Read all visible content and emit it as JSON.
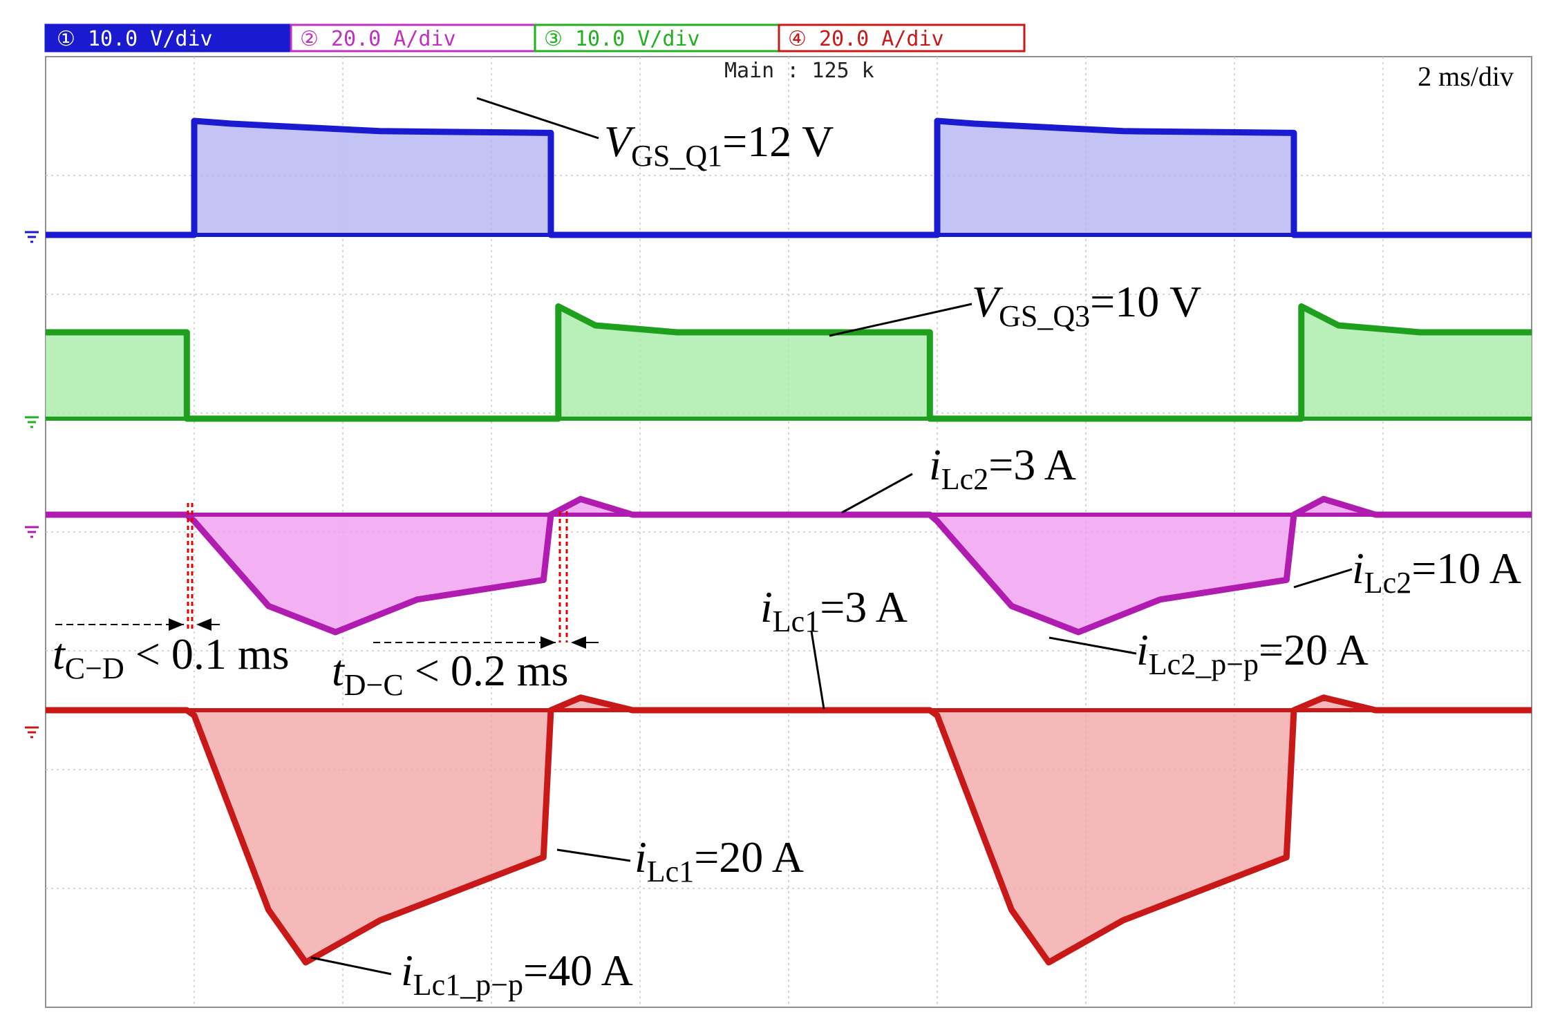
{
  "header": {
    "channels": [
      {
        "label": "10.0 V/div",
        "badge": "① ",
        "color": "#1a1ad0"
      },
      {
        "label": "20.0 A/div",
        "badge": "② ",
        "color": "#c030c0"
      },
      {
        "label": "10.0 V/div",
        "badge": "③ ",
        "color": "#20b020"
      },
      {
        "label": "20.0 A/div",
        "badge": "④ ",
        "color": "#c81818"
      }
    ],
    "main_label": "Main : 125 k",
    "timebase": "2 ms/div"
  },
  "annotations": {
    "vgs_q1": {
      "sym": "V",
      "sub": "GS_Q1",
      "rest": "=12 V"
    },
    "vgs_q3": {
      "sym": "V",
      "sub": "GS_Q3",
      "rest": "=10 V"
    },
    "ilc2_top": {
      "sym": "i",
      "sub": "Lc2",
      "rest": "=3 A"
    },
    "ilc2_right": {
      "sym": "i",
      "sub": "Lc2",
      "rest": "=10 A"
    },
    "ilc2_pp": {
      "sym": "i",
      "sub": "Lc2_p−p",
      "rest": "=20 A"
    },
    "ilc1_top": {
      "sym": "i",
      "sub": "Lc1",
      "rest": "=3 A"
    },
    "ilc1_mid": {
      "sym": "i",
      "sub": "Lc1",
      "rest": "=20 A"
    },
    "ilc1_pp": {
      "sym": "i",
      "sub": "Lc1_p−p",
      "rest": "=40 A"
    },
    "t_cd": {
      "sym": "t",
      "sub": "C−D",
      "rest": " < 0.1 ms"
    },
    "t_dc": {
      "sym": "t",
      "sub": "D−C",
      "rest": " < 0.2 ms"
    }
  },
  "chart_data": {
    "type": "line",
    "title": "",
    "x_units": "ms",
    "time_per_div_ms": 2,
    "divisions": {
      "x": 10,
      "y": 8
    },
    "grid": true,
    "series": [
      {
        "name": "V_GS_Q1",
        "channel": 1,
        "color": "#1a1ad0",
        "fill": "#b4b4f4",
        "units": "V",
        "scale_per_div": 10,
        "x": [
          0,
          2.0,
          2.0,
          2.5,
          4.5,
          6.8,
          6.8,
          12.0,
          12.0,
          12.5,
          14.5,
          16.8,
          16.8,
          20
        ],
        "y": [
          0,
          0,
          12.3,
          12.0,
          11.2,
          11.0,
          0,
          0,
          12.3,
          12.0,
          11.2,
          11.0,
          0,
          0
        ]
      },
      {
        "name": "V_GS_Q3",
        "channel": 3,
        "color": "#1ea01e",
        "fill": "#a8eca8",
        "units": "V",
        "scale_per_div": 10,
        "x": [
          0,
          1.9,
          1.9,
          6.9,
          6.9,
          7.4,
          8.5,
          11.9,
          11.9,
          16.9,
          16.9,
          17.4,
          18.5,
          20
        ],
        "y": [
          10,
          10,
          0,
          0,
          13,
          10.8,
          10,
          10,
          0,
          0,
          13,
          10.8,
          10,
          10
        ]
      },
      {
        "name": "i_Lc2",
        "channel": 2,
        "color": "#b01cb0",
        "fill": "#f09cf0",
        "units": "A",
        "scale_per_div": 20,
        "x": [
          0,
          1.9,
          2.0,
          3.0,
          3.9,
          5.0,
          6.7,
          6.8,
          7.2,
          7.9,
          9.0,
          11.9,
          12.0,
          13.0,
          13.9,
          15.0,
          16.7,
          16.8,
          17.2,
          17.9,
          19.0,
          20
        ],
        "y": [
          0,
          0,
          -1,
          -14,
          -18,
          -13,
          -10,
          0,
          2.4,
          0,
          0,
          0,
          -1,
          -14,
          -18,
          -13,
          -10,
          0,
          2.4,
          0,
          0,
          0
        ]
      },
      {
        "name": "i_Lc1",
        "channel": 4,
        "color": "#c81818",
        "fill": "#f4a8a8",
        "units": "A",
        "scale_per_div": 20,
        "x": [
          0,
          1.9,
          2.0,
          3.0,
          3.5,
          4.5,
          6.7,
          6.8,
          7.2,
          7.9,
          9.0,
          11.9,
          12.0,
          13.0,
          13.5,
          14.5,
          16.7,
          16.8,
          17.2,
          17.9,
          19.0,
          20
        ],
        "y": [
          0,
          0,
          -1,
          -38,
          -48,
          -40,
          -28,
          0,
          2.4,
          0,
          0,
          0,
          -1,
          -38,
          -48,
          -40,
          -28,
          0,
          2.4,
          0,
          0,
          0
        ]
      }
    ]
  }
}
